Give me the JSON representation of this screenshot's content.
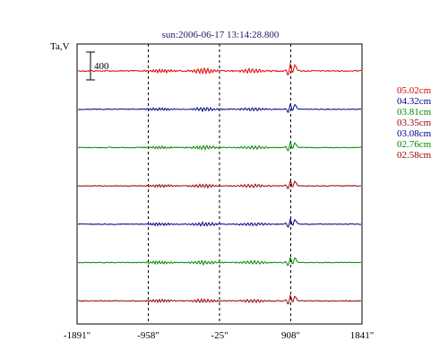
{
  "chart_data": {
    "type": "line",
    "title": "sun:2006-06-17 13:14:28.800",
    "ylabel": "Ta,V",
    "xlabel": "",
    "x_ticks": [
      -1891,
      -958,
      -25,
      908,
      1841
    ],
    "x_tick_labels": [
      "-1891\"",
      "-958\"",
      "-25\"",
      "908\"",
      "1841\""
    ],
    "xlim": [
      -1891,
      1841
    ],
    "grid_x": [
      -958,
      -25,
      908
    ],
    "scale_bar": {
      "label": "400",
      "value": 400
    },
    "series": [
      {
        "name": "05.02cm",
        "color": "#dd0000"
      },
      {
        "name": "04.32cm",
        "color": "#000088"
      },
      {
        "name": "03.81cm",
        "color": "#008800"
      },
      {
        "name": "03.35cm",
        "color": "#990000"
      },
      {
        "name": "03.08cm",
        "color": "#000088"
      },
      {
        "name": "02.76cm",
        "color": "#008800"
      },
      {
        "name": "02.58cm",
        "color": "#990000"
      }
    ],
    "legend_position": "right"
  }
}
